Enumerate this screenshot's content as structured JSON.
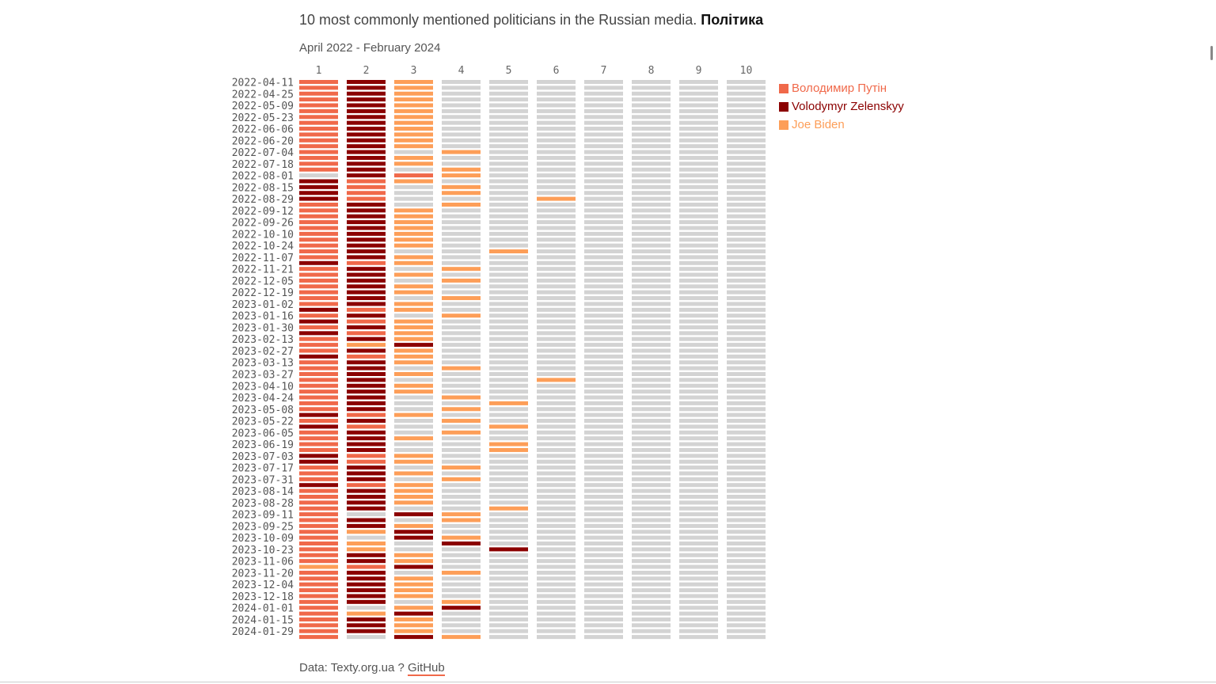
{
  "title": {
    "main": "10 most commonly mentioned politicians in the Russian media.",
    "section": "Політика"
  },
  "subtitle": "April 2022 - February 2024",
  "footer": {
    "source": "Data: Texty.org.ua ?",
    "link": "GitHub"
  },
  "chart_data": {
    "type": "heatmap",
    "title": "10 most commonly mentioned politicians in the Russian media. Політика",
    "subtitle": "April 2022 - February 2024",
    "columns": [
      "1",
      "2",
      "3",
      "4",
      "5",
      "6",
      "7",
      "8",
      "9",
      "10"
    ],
    "row_tick_labels": [
      "2022-04-11",
      "2022-04-25",
      "2022-05-09",
      "2022-05-23",
      "2022-06-06",
      "2022-06-20",
      "2022-07-04",
      "2022-07-18",
      "2022-08-01",
      "2022-08-15",
      "2022-08-29",
      "2022-09-12",
      "2022-09-26",
      "2022-10-10",
      "2022-10-24",
      "2022-11-07",
      "2022-11-21",
      "2022-12-05",
      "2022-12-19",
      "2023-01-02",
      "2023-01-16",
      "2023-01-30",
      "2023-02-13",
      "2023-02-27",
      "2023-03-13",
      "2023-03-27",
      "2023-04-10",
      "2023-04-24",
      "2023-05-08",
      "2023-05-22",
      "2023-06-05",
      "2023-06-19",
      "2023-07-03",
      "2023-07-17",
      "2023-07-31",
      "2023-08-14",
      "2023-08-28",
      "2023-09-11",
      "2023-09-25",
      "2023-10-09",
      "2023-10-23",
      "2023-11-06",
      "2023-11-20",
      "2023-12-04",
      "2023-12-18",
      "2024-01-01",
      "2024-01-15",
      "2024-01-29"
    ],
    "legend_placement": "right",
    "legend": [
      {
        "code": "P",
        "name": "Володимир Путін",
        "color": "#f0694a"
      },
      {
        "code": "Z",
        "name": "Volodymyr Zelenskyy",
        "color": "#8b0000"
      },
      {
        "code": "B",
        "name": "Joe Biden",
        "color": "#fd9e58"
      }
    ],
    "other_color": "#d3d3d3",
    "rows": [
      "PZB.......",
      "PZB.......",
      "PZB.......",
      "PZB.......",
      "PZB.......",
      "PZB.......",
      "PZB.......",
      "PZB.......",
      "PZB.......",
      "PZB.......",
      "PZB.......",
      "PZB.......",
      "PZ.B......",
      "PZB.......",
      "PZB.......",
      "PZ.B......",
      ".ZPB......",
      "ZPB.......",
      "ZP.B......",
      "ZP.B......",
      "ZP...B....",
      "PZ.B......",
      "PZB.......",
      "PZB.......",
      "PZB.......",
      "PZB.......",
      "PZB.......",
      "PZB.......",
      "PZB.......",
      "PZ..B.....",
      "PZB.......",
      "ZPB.......",
      "PZ.B......",
      "PZB.......",
      "PZ.B......",
      "PZB.......",
      "PZB.......",
      "PZ.B......",
      "PZB.......",
      "ZPB.......",
      "PZ.B......",
      "ZPB.......",
      "PZB.......",
      "ZPB.......",
      "PZB.......",
      "PBZ.......",
      "PZB.......",
      "ZPB.......",
      "PZB.......",
      "PZ.B......",
      "PZB.......",
      "PZ...B....",
      "PZB.......",
      "PZB.......",
      "PZ.B......",
      "PZ..B.....",
      "PZ.B......",
      "ZPB.......",
      "PZ.B......",
      "ZP..B.....",
      "PZ.B......",
      "PZB.......",
      "PZ..B.....",
      "PZ..B.....",
      "ZPB.......",
      "ZPB.......",
      "PZ.B......",
      "PZB.......",
      "PZ.B......",
      "ZPB.......",
      "PZB.......",
      "PZB.......",
      "PZB.......",
      "PZ..B.....",
      "P.ZB......",
      "PZ.B......",
      "PZB.......",
      "PBZ.......",
      "P.ZB......",
      "PB.Z......",
      "PB..Z.....",
      "PZB.......",
      "PZB.......",
      "BPZ.......",
      "PZ.B......",
      "PZB.......",
      "PZB.......",
      "PZB.......",
      "PZB.......",
      "PZ.B......",
      "P.BZ......",
      "PBZ.......",
      "PZB.......",
      "PZB.......",
      "PZB.......",
      "P.ZB......"
    ]
  }
}
